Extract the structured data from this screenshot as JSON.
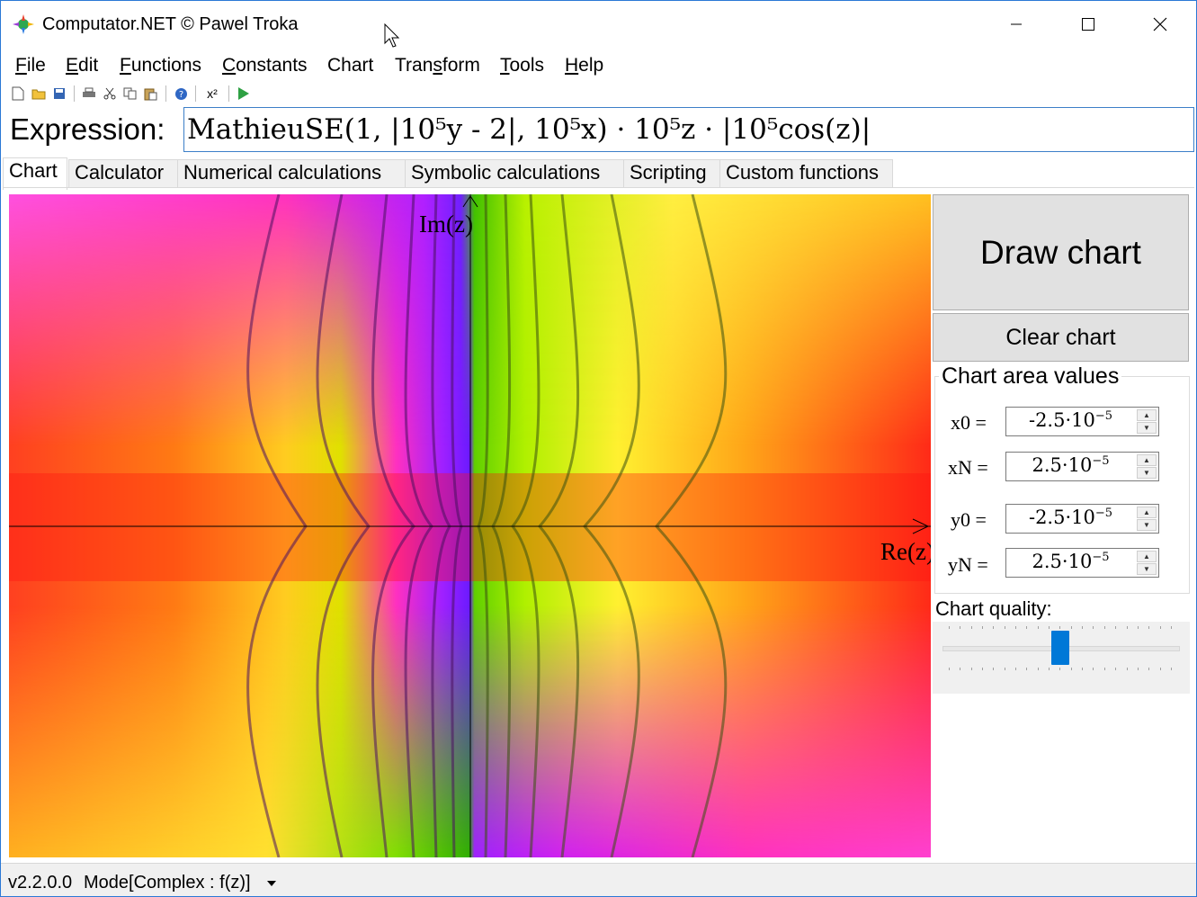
{
  "window": {
    "title": "Computator.NET © Pawel Troka"
  },
  "menu": {
    "file": {
      "label": "File",
      "u": "F",
      "rest": "ile"
    },
    "edit": {
      "label": "Edit",
      "u": "E",
      "rest": "dit"
    },
    "functions": {
      "label": "Functions",
      "u": "F",
      "rest": "unctions"
    },
    "constants": {
      "label": "Constants",
      "u": "C",
      "rest": "onstants"
    },
    "chart": {
      "label": "Chart"
    },
    "transform": {
      "label": "Transform",
      "pre": "Tran",
      "u": "s",
      "rest": "form"
    },
    "tools": {
      "label": "Tools",
      "u": "T",
      "rest": "ools"
    },
    "help": {
      "label": "Help",
      "u": "H",
      "rest": "elp"
    }
  },
  "toolbar": {
    "exponent_label": "x²"
  },
  "expression": {
    "label": "Expression:",
    "value": "MathieuSE(1, |10⁵y - 2|, 10⁵x) · 10⁵z · |10⁵cos(z)|"
  },
  "tabs": {
    "chart": "Chart",
    "calculator": "Calculator",
    "numerical": "Numerical calculations",
    "symbolic": "Symbolic calculations",
    "scripting": "Scripting",
    "custom": "Custom functions"
  },
  "chart": {
    "x_axis_label": "Re(z)",
    "y_axis_label": "Im(z)"
  },
  "panel": {
    "draw_button": "Draw chart",
    "clear_button": "Clear chart",
    "area_group_title": "Chart area values",
    "x0": {
      "label": "x0 =",
      "mantissa": "-2.5·10",
      "exp": "−5"
    },
    "xN": {
      "label": "xN =",
      "mantissa": "2.5·10",
      "exp": "−5"
    },
    "y0": {
      "label": "y0 =",
      "mantissa": "-2.5·10",
      "exp": "−5"
    },
    "yN": {
      "label": "yN =",
      "mantissa": "2.5·10",
      "exp": "−5"
    },
    "quality_label": "Chart quality:",
    "quality_level": 0.5
  },
  "status": {
    "version": "v2.2.0.0",
    "mode": "Mode[Complex : f(z)]"
  },
  "colors": {
    "accent": "#0078d7",
    "button_bg": "#e1e1e1"
  }
}
